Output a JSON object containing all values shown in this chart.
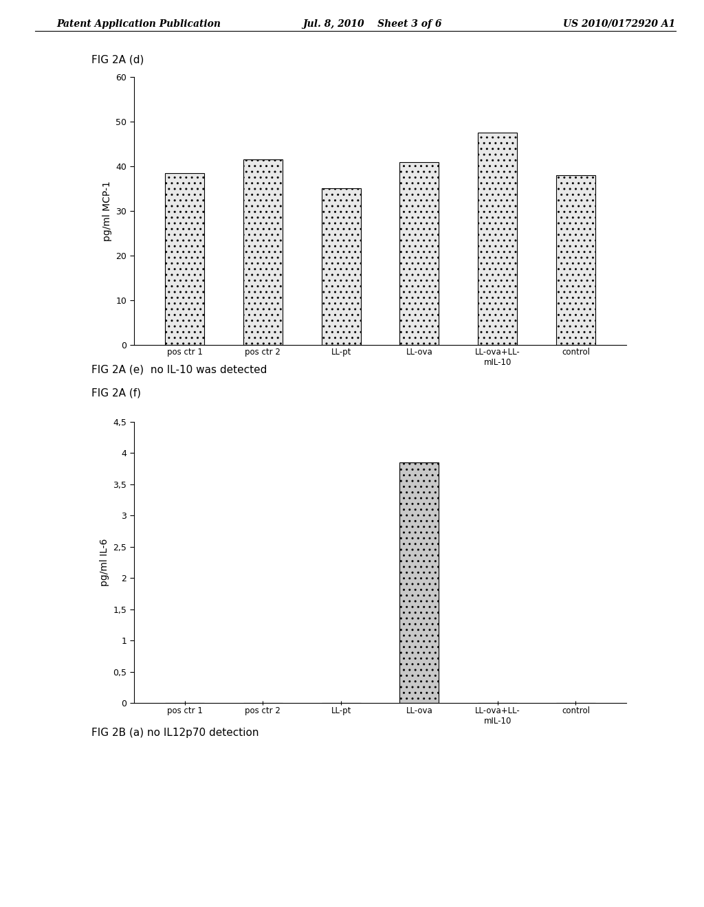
{
  "header_left": "Patent Application Publication",
  "header_mid": "Jul. 8, 2010    Sheet 3 of 6",
  "header_right": "US 2010/0172920 A1",
  "fig1_label": "FIG 2A (d)",
  "fig1_categories": [
    "pos ctr 1",
    "pos ctr 2",
    "LL-pt",
    "LL-ova",
    "LL-ova+LL-\nmIL-10",
    "control"
  ],
  "fig1_values": [
    38.5,
    41.5,
    35.0,
    41.0,
    47.5,
    38.0
  ],
  "fig1_ylabel": "pg/ml MCP-1",
  "fig1_ylim": [
    0,
    60
  ],
  "fig1_yticks": [
    0,
    10,
    20,
    30,
    40,
    50,
    60
  ],
  "fig1_bar_color": "#e8e8e8",
  "fig1_bar_edgecolor": "#000000",
  "fig2a_e_label": "FIG 2A (e)  no IL-10 was detected",
  "fig2_label": "FIG 2A (f)",
  "fig2_categories": [
    "pos ctr 1",
    "pos ctr 2",
    "LL-pt",
    "LL-ova",
    "LL-ova+LL-\nmIL-10",
    "control"
  ],
  "fig2_values": [
    0.0,
    0.0,
    0.0,
    3.85,
    0.0,
    0.0
  ],
  "fig2_ylabel": "pg/ml IL-6",
  "fig2_ylim": [
    0,
    4.5
  ],
  "fig2_yticks": [
    0,
    0.5,
    1.0,
    1.5,
    2.0,
    2.5,
    3.0,
    3.5,
    4.0,
    4.5
  ],
  "fig2_ytick_labels": [
    "0",
    "0,5",
    "1",
    "1,5",
    "2",
    "2,5",
    "3",
    "3,5",
    "4",
    "4,5"
  ],
  "fig2_bar_color": "#c8c8c8",
  "fig2_bar_edgecolor": "#000000",
  "fig2b_a_label": "FIG 2B (a) no IL12p70 detection",
  "background_color": "#ffffff",
  "font_color": "#000000",
  "font_size_header": 10,
  "font_size_label": 11,
  "font_size_tick": 9,
  "font_size_axis_label": 10
}
